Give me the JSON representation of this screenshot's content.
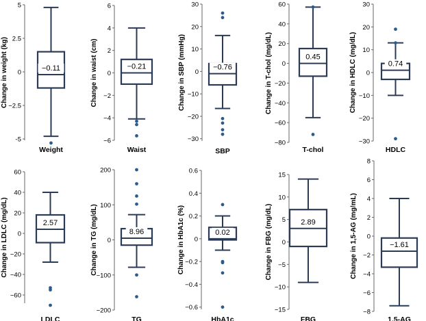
{
  "chart_data": [
    {
      "type": "box",
      "name": "Weight",
      "xlabel": "Weight",
      "ylabel": "Change in weight (kg)",
      "ylim": [
        -5.1,
        5
      ],
      "ticks": [
        5,
        2.5,
        0,
        -2.5,
        -5
      ],
      "tick_labels": [
        "5",
        "2.5",
        "0",
        "−2.5",
        "-5"
      ],
      "whisker_high": 4.8,
      "q3": 1.5,
      "median": -0.2,
      "q1": -1.2,
      "whisker_low": -4.8,
      "outliers": [
        -5.3
      ],
      "mean_label": "−0.11"
    },
    {
      "type": "box",
      "name": "Waist",
      "xlabel": "Waist",
      "ylabel": "Change in waist (cm)",
      "ylim": [
        -6,
        6
      ],
      "ticks": [
        6,
        4,
        2,
        0,
        -2,
        -4,
        -6
      ],
      "tick_labels": [
        "6",
        "4",
        "2",
        "0",
        "−2",
        "−4",
        "−6"
      ],
      "whisker_high": 4.0,
      "q3": 1.2,
      "median": 0.0,
      "q1": -1.0,
      "whisker_low": -4.1,
      "outliers": [
        -4.3,
        -4.6,
        -5.6
      ],
      "mean_label": "−0.21"
    },
    {
      "type": "box",
      "name": "SBP",
      "xlabel": "SBP",
      "ylabel": "Change in SBP (mmHg)",
      "ylim": [
        -31,
        30
      ],
      "ticks": [
        30,
        20,
        10,
        0,
        -10,
        -20,
        -30
      ],
      "tick_labels": [
        "30",
        "20",
        "10",
        "0",
        "−10",
        "−20",
        "−30"
      ],
      "whisker_high": 16,
      "q3": 3.5,
      "median": -1,
      "q1": -6,
      "whisker_low": -16.5,
      "outliers": [
        26,
        24,
        -21,
        -23,
        -26,
        -28
      ],
      "mean_label": "−0.76"
    },
    {
      "type": "box",
      "name": "T-chol",
      "xlabel": "T-chol",
      "ylabel": "Change in T-chol (mg/dL)",
      "ylim": [
        -80,
        60
      ],
      "ticks": [
        60,
        40,
        20,
        0,
        -20,
        -40,
        -60,
        -80
      ],
      "tick_labels": [
        "60",
        "40",
        "20",
        "0",
        "−20",
        "−40",
        "−60",
        "−80"
      ],
      "whisker_high": 57,
      "q3": 15,
      "median": 0,
      "q1": -13,
      "whisker_low": -55,
      "outliers": [
        57,
        -72
      ],
      "mean_label": "0.45"
    },
    {
      "type": "box",
      "name": "HDLC",
      "xlabel": "HDLC",
      "ylabel": "Change in HDLC (mg/dL)",
      "ylim": [
        -30,
        30
      ],
      "ticks": [
        30,
        20,
        10,
        0,
        -10,
        -20,
        -30
      ],
      "tick_labels": [
        "30",
        "20",
        "10",
        "0",
        "−10",
        "−20",
        "−30"
      ],
      "whisker_high": 13,
      "q3": 4,
      "median": 1,
      "q1": -3,
      "whisker_low": -10,
      "outliers": [
        19,
        13,
        -29
      ],
      "mean_label": "0.74"
    },
    {
      "type": "box",
      "name": "LDLC",
      "xlabel": "LDLC",
      "ylabel": "Change in LDLC (mg/dL)",
      "ylim": [
        -68,
        60
      ],
      "ticks": [
        60,
        40,
        20,
        0,
        -20,
        -40,
        -60
      ],
      "tick_labels": [
        "60",
        "40",
        "20",
        "0",
        "−20",
        "−40",
        "−60"
      ],
      "whisker_high": 40,
      "q3": 18,
      "median": 4,
      "q1": -9,
      "whisker_low": -28,
      "outliers": [
        -53,
        -55,
        -70
      ],
      "mean_label": "2.57"
    },
    {
      "type": "box",
      "name": "TG",
      "xlabel": "TG",
      "ylabel": "Change in TG (mg/dL)",
      "ylim": [
        -200,
        200
      ],
      "ticks": [
        200,
        100,
        0,
        -100,
        -200
      ],
      "tick_labels": [
        "200",
        "100",
        "0",
        "−100",
        "−200"
      ],
      "whisker_high": 72,
      "q3": 32,
      "median": 5,
      "q1": -15,
      "whisker_low": -78,
      "outliers": [
        200,
        160,
        125,
        102,
        -100,
        -162
      ],
      "mean_label": "8.96"
    },
    {
      "type": "box",
      "name": "HbA1c",
      "xlabel": "HbA1c",
      "ylabel": "Change in HbA1c (%)",
      "ylim": [
        -0.62,
        0.6
      ],
      "ticks": [
        0.6,
        0.4,
        0.2,
        0,
        -0.2,
        -0.4,
        -0.6
      ],
      "tick_labels": [
        "0.6",
        "0.4",
        "0.2",
        "0",
        "−0.2",
        "−0.4",
        "−0.6"
      ],
      "whisker_high": 0.2,
      "q3": 0.1,
      "median": 0.0,
      "q1": -0.01,
      "whisker_low": -0.1,
      "outliers": [
        0.3,
        -0.2,
        -0.21,
        -0.3,
        -0.6
      ],
      "mean_label": "0.02"
    },
    {
      "type": "box",
      "name": "FBG",
      "xlabel": "FBG",
      "ylabel": "Change in FBG (mg/dL)",
      "ylim": [
        -15,
        15
      ],
      "ticks": [
        15,
        10,
        5,
        0,
        -5,
        -10,
        -15
      ],
      "tick_labels": [
        "15",
        "10",
        "5",
        "0",
        "−5",
        "−10",
        "−15"
      ],
      "whisker_high": 14,
      "q3": 7.2,
      "median": 3,
      "q1": -1,
      "whisker_low": -9,
      "outliers": [],
      "mean_label": "2.89"
    },
    {
      "type": "box",
      "name": "1,5-AG",
      "xlabel": "1,5-AG",
      "ylabel": "Change in 1,5-AG (mg/mL)",
      "ylim": [
        -8,
        8
      ],
      "ticks": [
        8,
        6,
        4,
        2,
        0,
        -2,
        -4,
        -6,
        -8
      ],
      "tick_labels": [
        "8",
        "6",
        "4",
        "2",
        "0",
        "−2",
        "−4",
        "−6",
        "−8"
      ],
      "whisker_high": 4,
      "q3": -0.2,
      "median": -1.6,
      "q1": -3.3,
      "whisker_low": -7.4,
      "outliers": [],
      "mean_label": "−1.61"
    }
  ],
  "colors": {
    "box": "#2b3a55",
    "outlier": "#2e5c8a",
    "axis": "#666666"
  }
}
